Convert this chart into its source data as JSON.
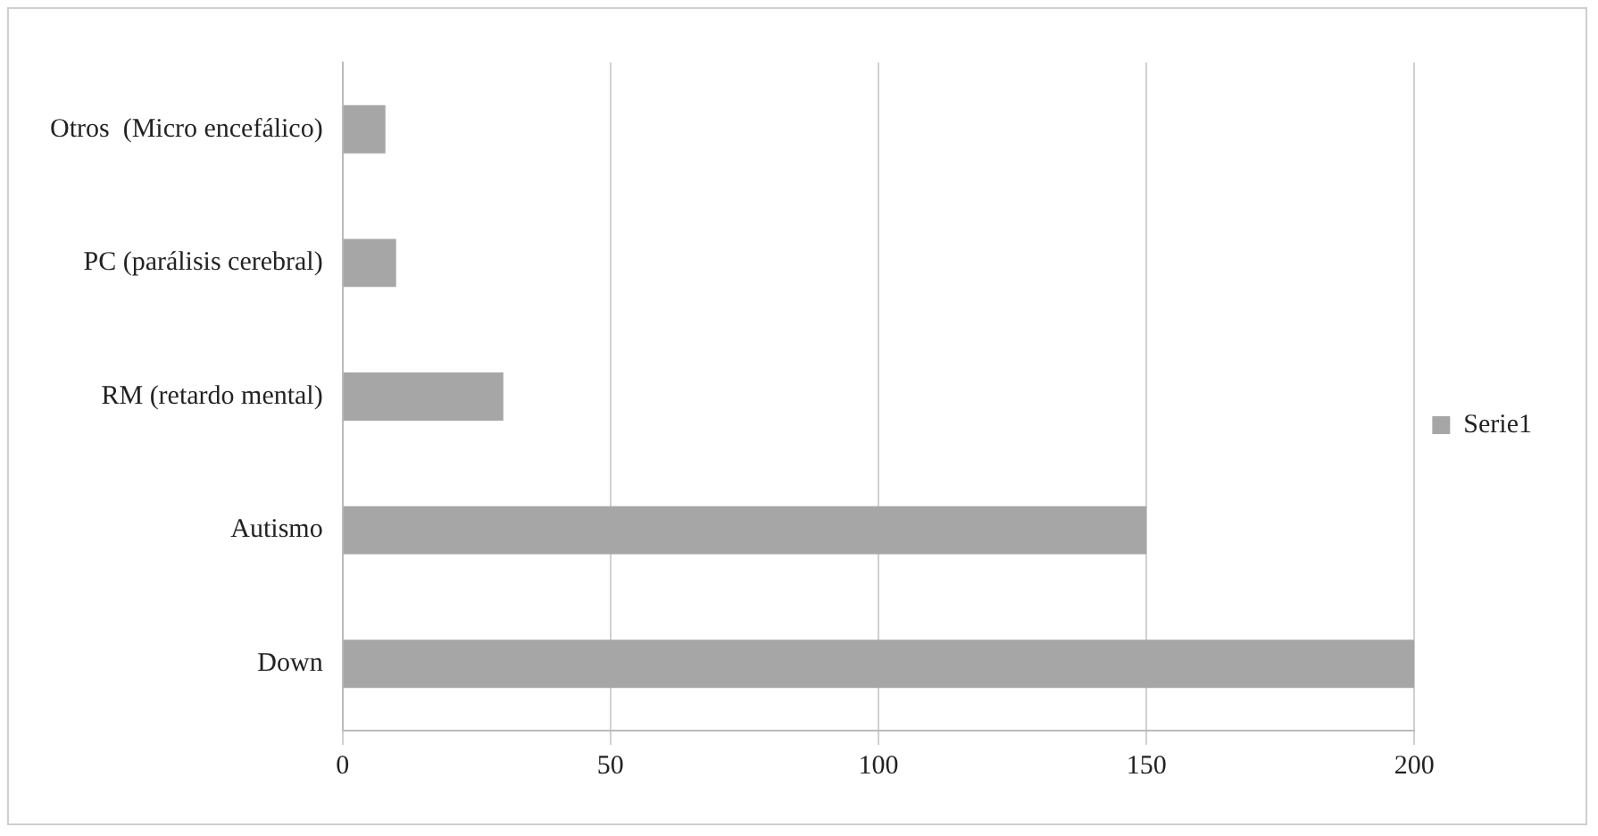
{
  "chart_data": {
    "type": "bar",
    "orientation": "horizontal",
    "categories": [
      "Otros  (Micro encefálico)",
      "PC (parálisis cerebral)",
      "RM (retardo mental)",
      "Autismo",
      "Down"
    ],
    "series": [
      {
        "name": "Serie1",
        "color": "#a6a6a6",
        "values": [
          8,
          10,
          30,
          150,
          200
        ]
      }
    ],
    "xlim": [
      0,
      200
    ],
    "xticks": [
      0,
      50,
      100,
      150,
      200
    ],
    "grid": "x",
    "legend": "right"
  }
}
